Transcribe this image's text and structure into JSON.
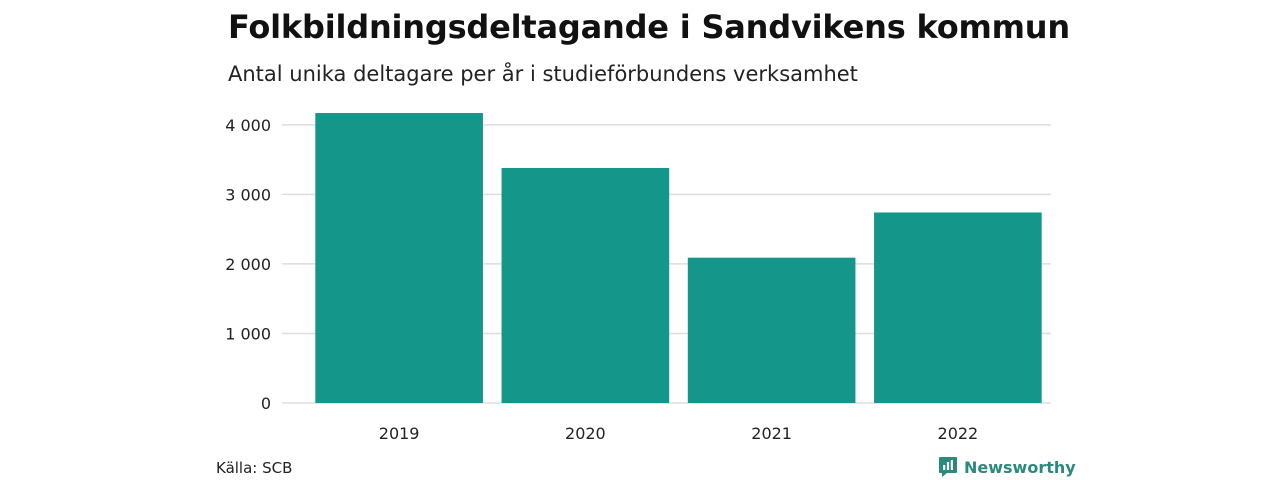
{
  "chart_data": {
    "type": "bar",
    "title": "Folkbildningsdeltagande i Sandvikens kommun",
    "subtitle": "Antal unika deltagare per år i studieförbundens verksamhet",
    "categories": [
      "2019",
      "2020",
      "2021",
      "2022"
    ],
    "values": [
      4170,
      3380,
      2090,
      2740
    ],
    "yticks": [
      0,
      1000,
      2000,
      3000,
      4000
    ],
    "ytick_labels": [
      "0",
      "1 000",
      "2 000",
      "3 000",
      "4 000"
    ],
    "ylim": [
      0,
      4300
    ],
    "grid": true,
    "bar_color": "#14968a",
    "grid_color": "#dddddd"
  },
  "footer": {
    "source": "Källa: SCB",
    "brand": "Newsworthy",
    "brand_icon": "newsworthy-logo-icon",
    "brand_color": "#2b8a7e"
  }
}
